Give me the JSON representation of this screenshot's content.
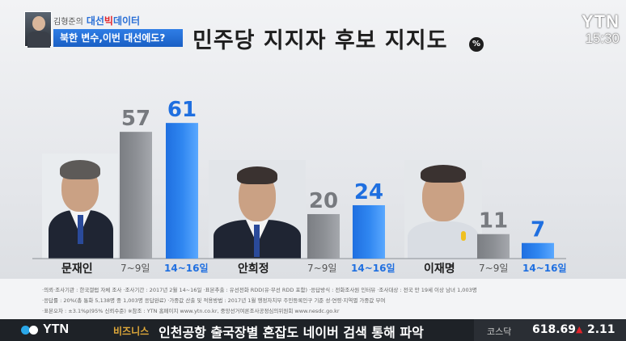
{
  "banner": {
    "host": "김형준의",
    "program_part1": "대선",
    "program_highlight": "빅",
    "program_part2": "데이터",
    "subtitle": "북한 변수,이번 대선에도?"
  },
  "broadcaster": {
    "logo": "YTN",
    "time": "15:30"
  },
  "colors": {
    "old_bar": "#8c8f94",
    "new_bar": "#2f86f0",
    "accent_red": "#e2232a",
    "ticker_bg": "#1e2227"
  },
  "chart_data": {
    "type": "bar",
    "title": "민주당 지지자 후보 지지도",
    "unit": "%",
    "categories": [
      "문재인",
      "안희정",
      "이재명"
    ],
    "series": [
      {
        "name": "7~9일",
        "values": [
          57,
          20,
          11
        ]
      },
      {
        "name": "14~16일",
        "values": [
          61,
          24,
          7
        ]
      }
    ],
    "ylim": [
      0,
      70
    ]
  },
  "notes": {
    "row1": "·의뢰·조사기관 : 한국갤럽 자체 조사   ·조사기간 : 2017년 2월 14~16일   ·표본추출 : 유선전화 RDD(유·무선 RDD 포함)   ·응답방식 : 전화조사원 인터뷰   ·조사대상 : 전국 만 19세 이상 남녀 1,003명",
    "row2": "·응답률 : 20%(총 통화 5,138명 중 1,003명 응답완료)   ·가중값 산출 및 적용방법 : 2017년 1월 행정자치부 주민등록인구 기준 성·연령·지역별 가중값 부여",
    "row3": "·표본오차 : ±3.1%p(95% 신뢰수준)   ※참조 : YTN 홈페이지 www.ytn.co.kr, 중앙선거여론조사공정심의위원회 www.nesdc.go.kr"
  },
  "ticker": {
    "logo": "YTN",
    "category": "비즈니스",
    "headline": "인천공항 출국장별 혼잡도 네이버 검색 통해 파악",
    "market_name": "코스닥",
    "market_value": "618.69",
    "market_arrow": "▲",
    "market_change": "2.11"
  }
}
